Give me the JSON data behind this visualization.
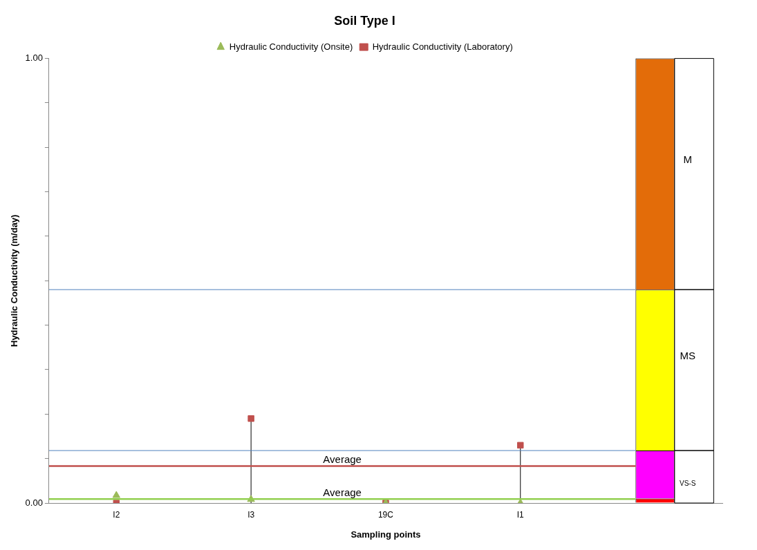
{
  "chart_data": {
    "type": "scatter",
    "title": "Soil Type I",
    "xlabel": "Sampling points",
    "ylabel": "Hydraulic Conductivity (m/day)",
    "categories": [
      "I2",
      "I3",
      "19C",
      "I1",
      null
    ],
    "ylim": [
      0,
      1
    ],
    "yticks": [
      {
        "value": 0,
        "label": "0.00"
      },
      {
        "value": 0.1,
        "label": null
      },
      {
        "value": 0.2,
        "label": null
      },
      {
        "value": 0.3,
        "label": null
      },
      {
        "value": 0.4,
        "label": null
      },
      {
        "value": 0.5,
        "label": null
      },
      {
        "value": 0.6,
        "label": null
      },
      {
        "value": 0.7,
        "label": null
      },
      {
        "value": 0.8,
        "label": null
      },
      {
        "value": 0.9,
        "label": null
      },
      {
        "value": 1,
        "label": "1.00"
      }
    ],
    "grid": false,
    "legend": "top",
    "stacked": true,
    "series": [
      {
        "name": "Hydraulic Conductivity (Laboratory)",
        "type": "lollipop",
        "marker": "square",
        "color": "#c0504d",
        "values": [
          0,
          0.19,
          0,
          0.13,
          null
        ]
      },
      {
        "name": "Hydraulic Conductivity (Onsite)",
        "marker": "triangle",
        "color": "#9bbb59",
        "values": [
          0.017,
          0.008,
          0,
          0,
          null
        ]
      },
      {
        "type": "bar",
        "color": "#ff0000",
        "values": [
          null,
          null,
          null,
          null,
          0.01
        ]
      },
      {
        "type": "bar",
        "color": "#ff00ff",
        "values": [
          null,
          null,
          null,
          null,
          0.108
        ]
      },
      {
        "type": "bar",
        "color": "#ffff00",
        "values": [
          null,
          null,
          null,
          null,
          0.362
        ]
      },
      {
        "type": "bar",
        "color": "#e36c09",
        "values": [
          null,
          null,
          null,
          null,
          0.52
        ]
      }
    ],
    "ref_lines": [
      {
        "axis": "y",
        "value": 0.48,
        "color": "#4f81bd"
      },
      {
        "axis": "y",
        "value": 0.118,
        "color": "#4f81bd"
      },
      {
        "axis": "y",
        "value": 0.083,
        "label": "Average",
        "color": "#c0504d"
      },
      {
        "axis": "y",
        "value": 0.009,
        "label": "Average",
        "color": "#92d050"
      }
    ],
    "annotations": [
      "M",
      "MS",
      "VS-S"
    ]
  }
}
